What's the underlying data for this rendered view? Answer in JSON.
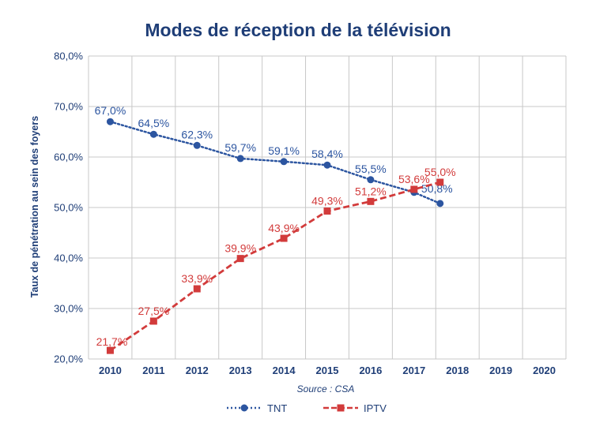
{
  "chart_data": {
    "type": "line",
    "title": "Modes de réception de la télévision",
    "ylabel": "Taux de pénétration au sein des foyers",
    "xlabel": "",
    "source": "Source : CSA",
    "ylim": [
      20,
      80
    ],
    "y_ticks": [
      "20,0%",
      "30,0%",
      "40,0%",
      "50,0%",
      "60,0%",
      "70,0%",
      "80,0%"
    ],
    "x_ticks": [
      "2010",
      "2011",
      "2012",
      "2013",
      "2014",
      "2015",
      "2016",
      "2017",
      "2018",
      "2019",
      "2020"
    ],
    "grid": true,
    "legend_position": "bottom",
    "series": [
      {
        "name": "TNT",
        "color": "#2c55a0",
        "style": "dotted",
        "marker": "circle",
        "x": [
          2010,
          2011,
          2012,
          2013,
          2014,
          2015,
          2016,
          2017,
          2017.6
        ],
        "values": [
          67.0,
          64.5,
          62.3,
          59.7,
          59.1,
          58.4,
          55.5,
          53.0,
          50.8
        ],
        "labels": [
          "67,0%",
          "64,5%",
          "62,3%",
          "59,7%",
          "59,1%",
          "58,4%",
          "55,5%",
          "",
          "50,8%"
        ]
      },
      {
        "name": "IPTV",
        "color": "#d23b3b",
        "style": "dashed",
        "marker": "square",
        "x": [
          2010,
          2011,
          2012,
          2013,
          2014,
          2015,
          2016,
          2017,
          2017.6
        ],
        "values": [
          21.7,
          27.5,
          33.9,
          39.9,
          43.9,
          49.3,
          51.2,
          53.6,
          55.0
        ],
        "labels": [
          "21,7%",
          "27,5%",
          "33,9%",
          "39,9%",
          "43,9%",
          "49,3%",
          "51,2%",
          "53,6%",
          "55,0%"
        ]
      }
    ]
  }
}
